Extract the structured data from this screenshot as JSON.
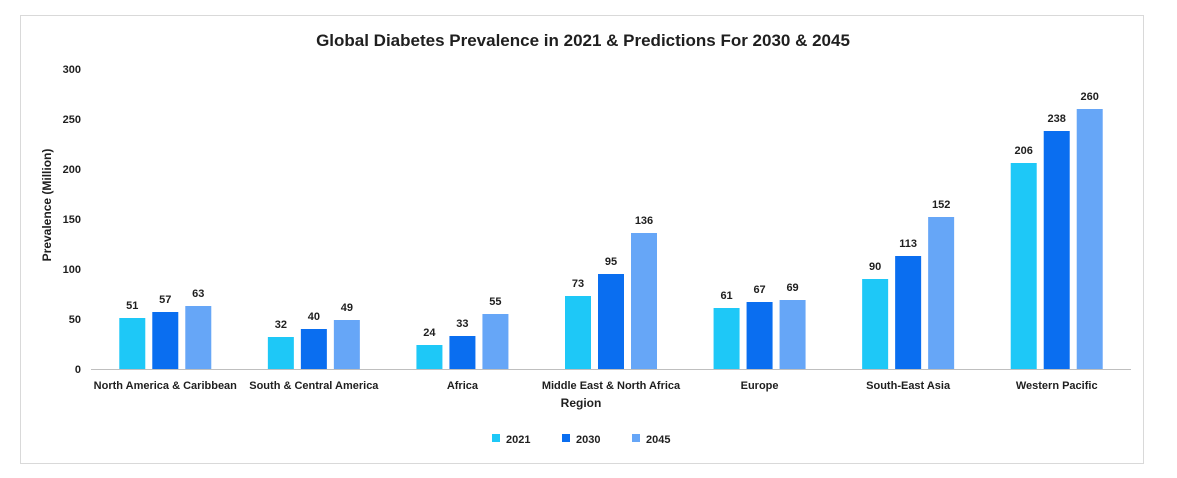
{
  "chart_data": {
    "type": "bar",
    "title": "Global Diabetes Prevalence in 2021 & Predictions For 2030 & 2045",
    "xlabel": "Region",
    "ylabel": "Prevalence (Million)",
    "ylim": [
      0,
      300
    ],
    "yticks": [
      0,
      50,
      100,
      150,
      200,
      250,
      300
    ],
    "categories": [
      "North America & Caribbean",
      "South & Central America",
      "Africa",
      "Middle East & North Africa",
      "Europe",
      "South-East Asia",
      "Western Pacific"
    ],
    "series": [
      {
        "name": "2021",
        "color": "#1ec8f7",
        "values": [
          51,
          32,
          24,
          73,
          61,
          90,
          206
        ]
      },
      {
        "name": "2030",
        "color": "#0a6ef0",
        "values": [
          57,
          40,
          33,
          95,
          67,
          113,
          238
        ]
      },
      {
        "name": "2045",
        "color": "#66a6f7",
        "values": [
          63,
          49,
          55,
          136,
          69,
          152,
          260
        ]
      }
    ],
    "grid": false,
    "legend_position": "bottom",
    "data_labels": true
  }
}
